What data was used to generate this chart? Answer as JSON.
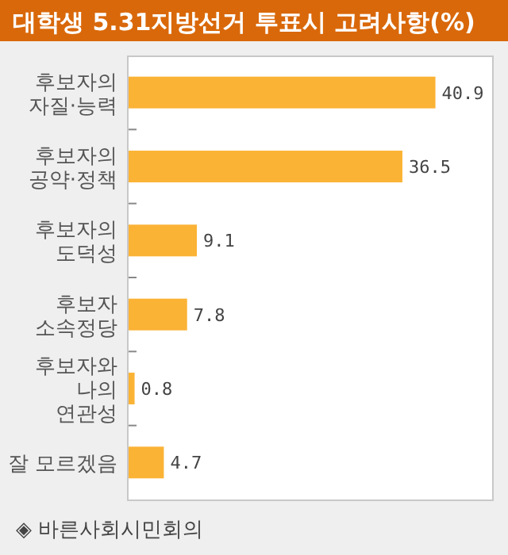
{
  "chart_data": {
    "type": "bar",
    "orientation": "horizontal",
    "title": "대학생 5.31지방선거 투표시 고려사항(%)",
    "categories": [
      "후보자의\n자질·능력",
      "후보자의\n공약·정책",
      "후보자의\n도덕성",
      "후보자\n소속정당",
      "후보자와\n나의\n연관성",
      "잘 모르겠음"
    ],
    "values": [
      40.9,
      36.5,
      9.1,
      7.8,
      0.8,
      4.7
    ],
    "color": "#fbb335",
    "data_labels": true,
    "annotations": [
      "◈ 바른사회시민회의"
    ]
  }
}
